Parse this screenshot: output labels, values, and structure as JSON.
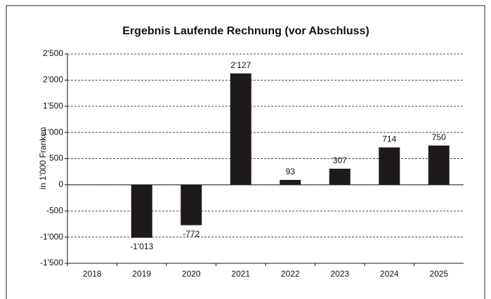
{
  "chart_data": {
    "type": "bar",
    "title": "Ergebnis Laufende Rechnung (vor Abschluss)",
    "y_label": "in 1'000 Franken",
    "categories": [
      "2018",
      "2019",
      "2020",
      "2021",
      "2022",
      "2023",
      "2024",
      "2025"
    ],
    "values": [
      null,
      -1013,
      -772,
      2127,
      93,
      307,
      714,
      750
    ],
    "value_labels": [
      null,
      "-1'013",
      "-772",
      "2'127",
      "93",
      "307",
      "714",
      "750"
    ],
    "color": "#1f1a1a",
    "ylim": [
      -1500,
      2500
    ],
    "yticks": [
      {
        "value": -1500,
        "label": "-1'500"
      },
      {
        "value": -1000,
        "label": "-1'000"
      },
      -500,
      0,
      500,
      {
        "value": 1000,
        "label": "1'000"
      },
      {
        "value": 1500,
        "label": "1'500"
      },
      {
        "value": 2000,
        "label": "2'000"
      },
      {
        "value": 2500,
        "label": "2'500"
      }
    ],
    "grid": true
  }
}
